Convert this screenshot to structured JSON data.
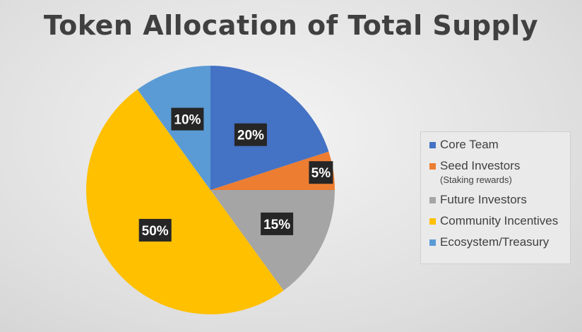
{
  "chart_data": {
    "type": "pie",
    "title": "Token Allocation of Total Supply",
    "slices": [
      {
        "name": "Core Team",
        "value": 20,
        "label": "20%",
        "color": "#4472C4"
      },
      {
        "name": "Seed Investors",
        "sub": "(Staking rewards)",
        "value": 5,
        "label": "5%",
        "color": "#ED7D31"
      },
      {
        "name": "Future Investors",
        "value": 15,
        "label": "15%",
        "color": "#A5A5A5"
      },
      {
        "name": "Community Incentives",
        "value": 50,
        "label": "50%",
        "color": "#FFC000"
      },
      {
        "name": "Ecosystem/Treasury",
        "value": 10,
        "label": "10%",
        "color": "#5B9BD5"
      }
    ],
    "legend_position": "right"
  }
}
